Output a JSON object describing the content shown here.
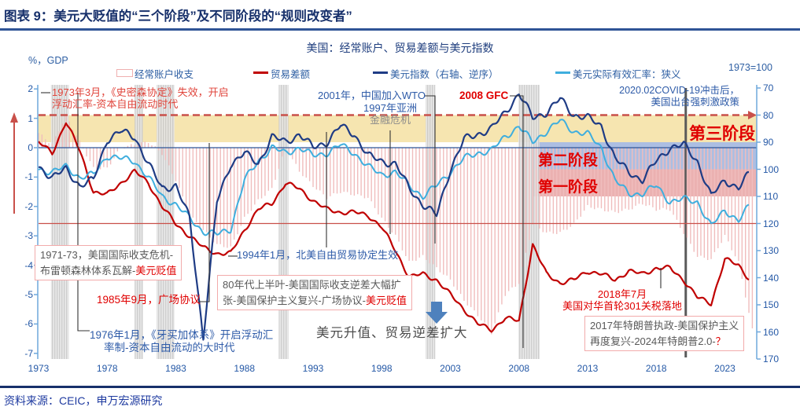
{
  "header": {
    "title": "图表 9：美元大贬值的“三个阶段”及不同阶段的“规则改变者”"
  },
  "footer": {
    "source": "资料来源：CEIC，申万宏源研究"
  },
  "main": {
    "chart_title": "美国：经常账户、贸易差额与美元指数"
  },
  "units": {
    "left": "%，GDP",
    "right": "1973=100"
  },
  "annotations": {
    "smithson_l1": "1973年3月，《史密森协定》失效，开启",
    "smithson_l2": "浮动汇率-资本自由流动时代",
    "wto": "2001年，中国加入WTO",
    "asia_l1": "1997年亚洲",
    "asia_l2": "金融危机",
    "gfc": "2008 GFC",
    "covid_l1": "2020.02COVID-19冲击后，",
    "covid_l2": "美国出台强刺激政策",
    "box1_l1": "1971-73，美国国际收支危机-",
    "box1_l2_pre": "布雷顿森林体系瓦解-",
    "box1_l2_red": "美元贬值",
    "plaza": "1985年9月，广场协议",
    "jamaica_l1": "1976年1月，《牙买加体系》开启浮动汇",
    "jamaica_l2": "率制-资本自由流动的大时代",
    "nafta": "1994年1月，北美自由贸易协定生效",
    "box2_l1": "80年代上半叶-美国国际收支逆差大幅扩",
    "box2_l2_pre": "张-美国保护主义复兴-广场协议-",
    "box2_l2_red": "美元贬值",
    "usd_up": "美元升值、贸易逆差扩大",
    "tariff_l1": "2018年7月",
    "tariff_l2": "美国对华首轮301关税落地",
    "box3_l1": "2017年特朗普执政-美国保护主义",
    "box3_l2_pre": "再度复兴-2024年特朗普2.0-",
    "box3_l2_red": "？"
  },
  "chart_data": {
    "type": "combo",
    "title": "美国：经常账户、贸易差额与美元指数",
    "x_axis": {
      "ticks": [
        1973,
        1978,
        1983,
        1988,
        1993,
        1998,
        2003,
        2008,
        2013,
        2018,
        2023
      ],
      "range": [
        1972.9,
        2025.3
      ]
    },
    "left_axis": {
      "label": "%，GDP",
      "ticks": [
        2,
        1,
        0,
        -1,
        -2,
        -3,
        -4,
        -5,
        -6,
        -7
      ],
      "range": [
        2.1,
        -7.2
      ]
    },
    "right_axis": {
      "label": "1973=100",
      "ticks": [
        70,
        80,
        90,
        100,
        110,
        120,
        130,
        140,
        150,
        160,
        170
      ],
      "range": [
        70,
        170
      ],
      "inverted": true
    },
    "years": [
      1973,
      1974,
      1975,
      1976,
      1977,
      1978,
      1979,
      1980,
      1981,
      1982,
      1983,
      1984,
      1985,
      1986,
      1987,
      1988,
      1989,
      1990,
      1991,
      1992,
      1993,
      1994,
      1995,
      1996,
      1997,
      1998,
      1999,
      2000,
      2001,
      2002,
      2003,
      2004,
      2005,
      2006,
      2007,
      2008,
      2009,
      2010,
      2011,
      2012,
      2013,
      2014,
      2015,
      2016,
      2017,
      2018,
      2019,
      2020,
      2021,
      2022,
      2023,
      2024,
      2025
    ],
    "series": [
      {
        "name": "经常账户收支",
        "type": "bar",
        "axis": "left",
        "color": "#F0BDBD",
        "values": [
          0.5,
          0.1,
          1.1,
          0.2,
          -0.7,
          -0.7,
          0.0,
          0.1,
          0.2,
          -0.2,
          -1.1,
          -2.3,
          -2.8,
          -3.3,
          -3.4,
          -2.4,
          -1.8,
          -1.4,
          0.0,
          -0.8,
          -1.3,
          -1.7,
          -1.5,
          -1.6,
          -1.7,
          -2.4,
          -3.0,
          -3.9,
          -3.7,
          -4.1,
          -4.5,
          -5.2,
          -5.7,
          -6.3,
          -5.0,
          -4.6,
          -2.6,
          -2.9,
          -2.9,
          -2.6,
          -2.0,
          -2.1,
          -2.2,
          -2.1,
          -1.9,
          -2.1,
          -2.1,
          -2.9,
          -3.7,
          -3.8,
          -3.0,
          -3.9,
          -6.2
        ]
      },
      {
        "name": "贸易差额",
        "type": "line",
        "axis": "left",
        "color": "#C00000",
        "values": [
          0.2,
          -0.2,
          0.9,
          -0.1,
          -1.5,
          -1.6,
          -1.2,
          -0.8,
          -1.2,
          -2.0,
          -2.6,
          -3.0,
          -3.4,
          -3.6,
          -3.6,
          -2.8,
          -2.1,
          -1.9,
          -1.2,
          -1.4,
          -1.8,
          -2.1,
          -2.2,
          -2.2,
          -2.3,
          -2.7,
          -3.5,
          -4.4,
          -4.3,
          -4.5,
          -5.0,
          -5.5,
          -6.0,
          -6.2,
          -5.8,
          -5.9,
          -3.3,
          -4.3,
          -4.6,
          -4.5,
          -4.2,
          -4.3,
          -4.5,
          -4.2,
          -4.3,
          -4.1,
          -4.1,
          -4.5,
          -5.1,
          -5.3,
          -3.8,
          -4.0,
          -4.6
        ]
      },
      {
        "name": "美元指数（右轴、逆序）",
        "type": "line",
        "axis": "right",
        "color": "#1F3C85",
        "values": [
          99,
          103,
          100,
          106,
          104,
          89,
          86,
          88,
          98,
          107,
          106,
          118,
          162,
          112,
          98,
          94,
          98,
          88,
          90,
          87,
          92,
          90,
          84,
          87,
          95,
          97,
          98,
          107,
          113,
          117,
          100,
          89,
          87,
          85,
          79,
          72,
          81,
          79,
          74,
          80,
          81,
          84,
          96,
          101,
          104,
          97,
          92,
          91,
          97,
          110,
          104,
          107,
          100
        ]
      },
      {
        "name": "美元实际有效汇率：狭义",
        "type": "line",
        "axis": "right",
        "color": "#3FAEDE",
        "values": [
          100,
          101,
          99,
          103,
          102,
          95,
          96,
          97,
          103,
          110,
          113,
          118,
          123,
          124,
          122,
          104,
          97,
          92,
          94,
          92,
          95,
          94,
          91,
          94,
          99,
          102,
          101,
          106,
          110,
          106,
          101,
          96,
          94,
          93,
          88,
          84,
          90,
          86,
          82,
          86,
          87,
          92,
          104,
          109,
          109,
          106,
          112,
          111,
          112,
          121,
          115,
          119,
          112
        ]
      }
    ],
    "stage_bands": [
      {
        "label": "第三阶段",
        "right_range": [
          80,
          90
        ],
        "x_range": [
          1972.9,
          2025.3
        ],
        "color": "#F6E5B0"
      },
      {
        "label": "第二阶段",
        "right_range": [
          90,
          100
        ],
        "x_range": [
          2009.05,
          2025.3
        ],
        "color": "rgba(70,110,190,0.45)"
      },
      {
        "label": "第一阶段",
        "right_range": [
          100,
          110
        ],
        "x_range": [
          2009.05,
          2025.3
        ],
        "color": "rgba(205,60,60,0.40)"
      }
    ],
    "reference_lines": [
      {
        "axis": "right",
        "value": 80,
        "style": "dashed",
        "color": "#C9504A",
        "arrow": true
      },
      {
        "axis": "right",
        "value": 120,
        "style": "solid",
        "color": "#C9504A",
        "arrow": false
      },
      {
        "axis": "left",
        "value": 0,
        "style": "solid",
        "color": "#2F5597",
        "arrow": false
      }
    ],
    "recessions": [
      [
        1973.9,
        1975.2
      ],
      [
        1980.0,
        1980.6
      ],
      [
        1981.6,
        1982.9
      ],
      [
        1990.5,
        1991.2
      ],
      [
        2001.2,
        2001.9
      ],
      [
        2007.95,
        2009.5
      ]
    ],
    "covid_marker_year": 2020.15
  }
}
